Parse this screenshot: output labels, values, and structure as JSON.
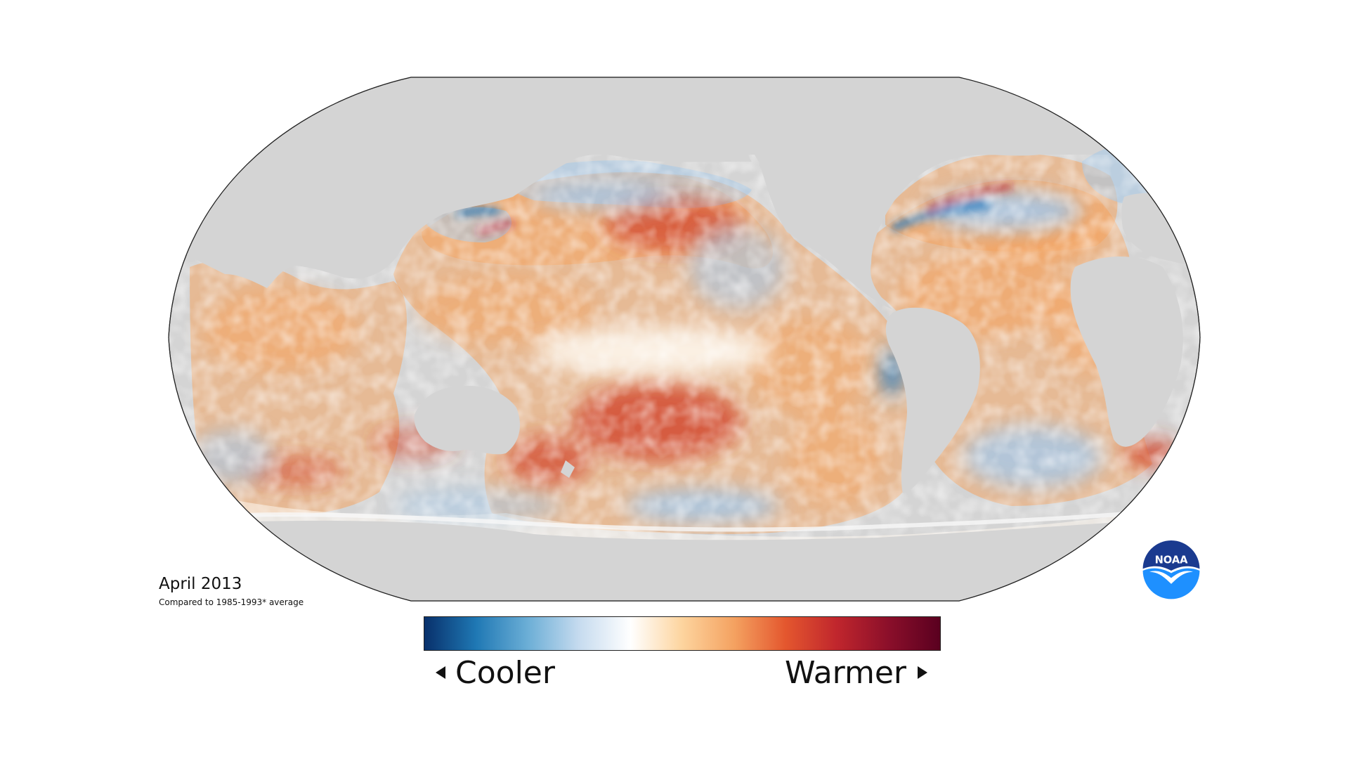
{
  "caption": {
    "date": "April 2013",
    "subtitle": "Compared to 1985-1993* average"
  },
  "colorbar": {
    "left_label": "Cooler",
    "right_label": "Warmer",
    "colors": [
      "#08306b",
      "#1f78b4",
      "#6baed6",
      "#c6dbef",
      "#ffffff",
      "#fdd49e",
      "#f4a261",
      "#e4572e",
      "#c0262d",
      "#8b0f2a",
      "#5a0020"
    ]
  },
  "logo": {
    "text": "NOAA",
    "colors": {
      "outer": "#ffffff",
      "top": "#1a3a8f",
      "bottom": "#1e90ff",
      "bird": "#ffffff"
    }
  },
  "map": {
    "land_color": "#d4d4d4",
    "ocean_neutral": "#fdf6ec",
    "warm": "#f4a460",
    "hot": "#d2452b",
    "cool": "#a6c8e8",
    "cold": "#2f7fc1"
  }
}
